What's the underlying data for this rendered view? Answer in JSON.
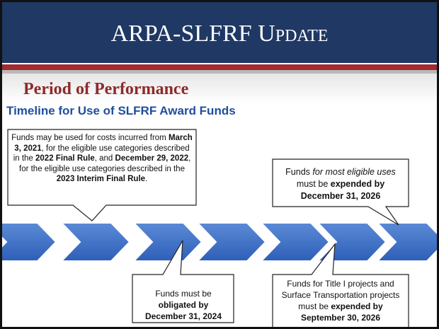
{
  "header": {
    "title": "ARPA-SLFRF Update"
  },
  "section": {
    "title": "Period of Performance"
  },
  "timeline": {
    "title": "Timeline for Use of SLFRF Award Funds",
    "callouts": [
      {
        "runs": [
          {
            "text": "Funds may be used for costs incurred from ",
            "style": "normal"
          },
          {
            "text": "March 3, 2021",
            "style": "bold"
          },
          {
            "text": ", for the eligible use categories described in the ",
            "style": "normal"
          },
          {
            "text": "2022 Final Rule",
            "style": "bold"
          },
          {
            "text": ", and ",
            "style": "normal"
          },
          {
            "text": "December 29, 2022",
            "style": "bold"
          },
          {
            "text": ", for the eligible use categories described in the ",
            "style": "normal"
          },
          {
            "text": "2023 Interim Final Rule",
            "style": "bold"
          },
          {
            "text": ".",
            "style": "normal"
          }
        ]
      },
      {
        "runs": [
          {
            "text": "Funds ",
            "style": "normal"
          },
          {
            "text": "for most eligible uses",
            "style": "italic"
          },
          {
            "text": " must be ",
            "style": "normal"
          },
          {
            "text": "expended by December 31, 2026",
            "style": "bold"
          }
        ]
      },
      {
        "runs": [
          {
            "text": "Funds must be ",
            "style": "normal"
          },
          {
            "text": "obligated by December 31, 2024",
            "style": "bold"
          }
        ]
      },
      {
        "runs": [
          {
            "text": "Funds for Title I projects and Surface Transportation projects must be ",
            "style": "normal"
          },
          {
            "text": "expended by September 30, 2026",
            "style": "bold"
          }
        ]
      }
    ]
  }
}
